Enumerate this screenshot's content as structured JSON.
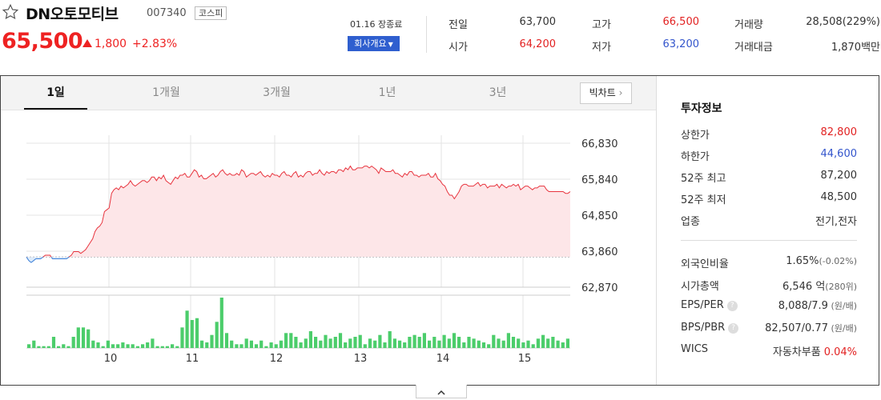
{
  "header": {
    "stock_name": "DN오토모티브",
    "stock_code": "007340",
    "market_badge": "코스피",
    "price": "65,500",
    "change": "1,800",
    "change_pct": "+2.83%",
    "market_status": "01.16 장종료",
    "company_button": "회사개요",
    "up_color": "#e22222",
    "down_color": "#3355cc"
  },
  "stats": [
    {
      "label": "전일",
      "value": "63,700",
      "tone": "neutral"
    },
    {
      "label": "고가",
      "value": "66,500",
      "tone": "up"
    },
    {
      "label": "거래량",
      "value": "28,508(229%)",
      "tone": "neutral"
    },
    {
      "label": "시가",
      "value": "64,200",
      "tone": "up"
    },
    {
      "label": "저가",
      "value": "63,200",
      "tone": "down"
    },
    {
      "label": "거래대금",
      "value": "1,870백만",
      "tone": "neutral"
    }
  ],
  "tabs": [
    "1일",
    "1개월",
    "3개월",
    "1년",
    "3년"
  ],
  "active_tab": 0,
  "bigchart_label": "빅차트",
  "chart_data": {
    "type": "line",
    "title": "",
    "price_ticks": [
      66830,
      65840,
      64850,
      63860,
      62870
    ],
    "price_tick_labels": [
      "66,830",
      "65,840",
      "64,850",
      "63,860",
      "62,870"
    ],
    "ylim": [
      62870,
      66830
    ],
    "reference_price": 63700,
    "x_tick_labels": [
      "10",
      "11",
      "12",
      "13",
      "14",
      "15"
    ],
    "series": [
      {
        "values": [
          63700,
          63600,
          63550,
          63600,
          63650,
          63650,
          63650,
          63700,
          63750,
          63750,
          63750,
          63650,
          63650,
          63650,
          63650,
          63650,
          63650,
          63650,
          63700,
          63750,
          63850,
          63850,
          63850,
          63800,
          63850,
          63900,
          64000,
          64100,
          64200,
          64400,
          64500,
          64550,
          64650,
          64950,
          65000,
          65050,
          65450,
          65550,
          65600,
          65550,
          65650,
          65600,
          65650,
          65700,
          65800,
          65700,
          65650,
          65700,
          65750,
          65800,
          65800,
          65750,
          65800,
          65900,
          65900,
          65800,
          65900,
          65850,
          65950,
          65800,
          65750,
          65700,
          65800,
          65900,
          65850,
          65950,
          65950,
          66000,
          65900,
          65900,
          66000,
          66100,
          66050,
          65900,
          65950,
          65850,
          65850,
          65900,
          65950,
          66000,
          65900,
          65950,
          66050,
          66100,
          66000,
          65950,
          66000,
          65950,
          65950,
          66000,
          65950,
          66100,
          66050,
          65900,
          65950,
          66000,
          66000,
          65950,
          66000,
          66050,
          65950,
          65900,
          65950,
          65900,
          66000,
          65950,
          65950,
          65900,
          66000,
          66050,
          65950,
          65950,
          65900,
          66000,
          66050,
          65900,
          65950,
          65900,
          66000,
          66050,
          66050,
          65950,
          66000,
          66000,
          66100,
          66000,
          65950,
          66050,
          66000,
          66050,
          66050,
          66000,
          66100,
          66100,
          66050,
          66150,
          66100,
          66200,
          66100,
          66100,
          66150,
          66150,
          66150,
          66200,
          66200,
          66150,
          66200,
          66150,
          66100,
          66000,
          66150,
          66100,
          66050,
          66050,
          66050,
          66100,
          66000,
          66000,
          65950,
          65900,
          66000,
          65950,
          66050,
          66050,
          65950,
          65950,
          65900,
          65950,
          65950,
          65950,
          66000,
          65900,
          65900,
          66000,
          65850,
          65800,
          65700,
          65650,
          65500,
          65400,
          65400,
          65300,
          65400,
          65500,
          65650,
          65700,
          65700,
          65650,
          65650,
          65650,
          65700,
          65750,
          65650,
          65700,
          65700,
          65600,
          65650,
          65650,
          65650,
          65700,
          65600,
          65700,
          65650,
          65600,
          65650,
          65650,
          65700,
          65650,
          65700,
          65550,
          65600,
          65650,
          65650,
          65600,
          65550,
          65600,
          65600,
          65650,
          65650,
          65650,
          65550,
          65500,
          65500,
          65500,
          65500,
          65500,
          65500,
          65500,
          65450,
          65450,
          65500
        ]
      }
    ],
    "volume": [
      2,
      4,
      1,
      1,
      1,
      6,
      1,
      2,
      1,
      6,
      11,
      11,
      10,
      4,
      3,
      1,
      4,
      2,
      2,
      3,
      2,
      2,
      1,
      2,
      3,
      5,
      1,
      1,
      1,
      2,
      1,
      11,
      20,
      15,
      16,
      4,
      3,
      7,
      14,
      27,
      8,
      4,
      2,
      2,
      5,
      4,
      2,
      4,
      1,
      3,
      2,
      4,
      8,
      8,
      6,
      3,
      5,
      9,
      6,
      4,
      7,
      5,
      6,
      8,
      3,
      5,
      6,
      7,
      2,
      5,
      4,
      7,
      3,
      9,
      5,
      4,
      3,
      6,
      7,
      6,
      8,
      4,
      6,
      4,
      7,
      5,
      8,
      6,
      3,
      6,
      5,
      4,
      3,
      2,
      7,
      5,
      4,
      8,
      6,
      5,
      3,
      4,
      2,
      5,
      7,
      5,
      6,
      4,
      3,
      5
    ]
  },
  "invest": {
    "title": "투자정보",
    "rows": [
      {
        "k": "상한가",
        "v": "82,800",
        "tone": "up"
      },
      {
        "k": "하한가",
        "v": "44,600",
        "tone": "down"
      },
      {
        "k": "52주 최고",
        "v": "87,200",
        "tone": "neutral"
      },
      {
        "k": "52주 최저",
        "v": "48,500",
        "tone": "neutral"
      },
      {
        "k": "업종",
        "v": "전기,전자",
        "tone": "neutral"
      }
    ],
    "rows2": [
      {
        "k": "외국인비율",
        "v": "1.65%",
        "sub": "(-0.02%)"
      },
      {
        "k": "시가총액",
        "v": "6,546 억",
        "sub": "(280위)"
      },
      {
        "k": "EPS/PER",
        "v": "8,088/7.9",
        "sub": " (원/배)",
        "help": "?"
      },
      {
        "k": "BPS/PBR",
        "v": "82,507/0.77",
        "sub": " (원/배)",
        "help": "?"
      },
      {
        "k": "WICS",
        "v": "자동차부품",
        "pct": "0.04%"
      }
    ]
  }
}
